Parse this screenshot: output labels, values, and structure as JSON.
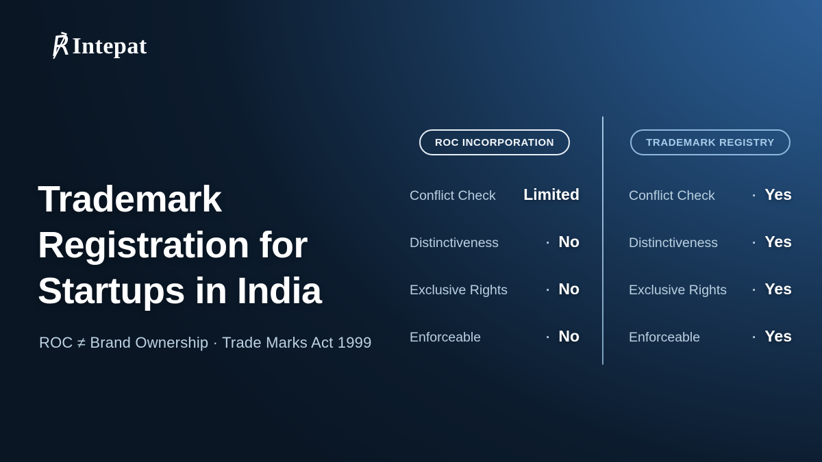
{
  "brand": {
    "logo_icon": "℟",
    "name": "Intepat"
  },
  "hero": {
    "title_lines": [
      "Trademark",
      "Registration for",
      "Startups in India"
    ],
    "subtitle": "ROC ≠ Brand Ownership · Trade Marks Act 1999"
  },
  "comparison": {
    "columns": [
      {
        "badge": "ROC INCORPORATION",
        "rows": [
          {
            "label": "Conflict Check",
            "separator": "",
            "value": "Limited"
          },
          {
            "label": "Distinctiveness",
            "separator": "·",
            "value": "No"
          },
          {
            "label": "Exclusive Rights",
            "separator": "·",
            "value": "No"
          },
          {
            "label": "Enforceable",
            "separator": "·",
            "value": "No"
          }
        ]
      },
      {
        "badge": "TRADEMARK REGISTRY",
        "rows": [
          {
            "label": "Conflict Check",
            "separator": "·",
            "value": "Yes"
          },
          {
            "label": "Distinctiveness",
            "separator": "·",
            "value": "Yes"
          },
          {
            "label": "Exclusive Rights",
            "separator": "·",
            "value": "Yes"
          },
          {
            "label": "Enforceable",
            "separator": "·",
            "value": "Yes"
          }
        ]
      }
    ]
  },
  "colors": {
    "background_dark": "#0a1624",
    "background_highlight": "#30649f",
    "text_primary": "#ffffff",
    "text_secondary": "#b9cfe0",
    "badge_white": "#f2f6fa",
    "badge_blue": "#a6cbe9",
    "divider": "#a9cdea"
  }
}
